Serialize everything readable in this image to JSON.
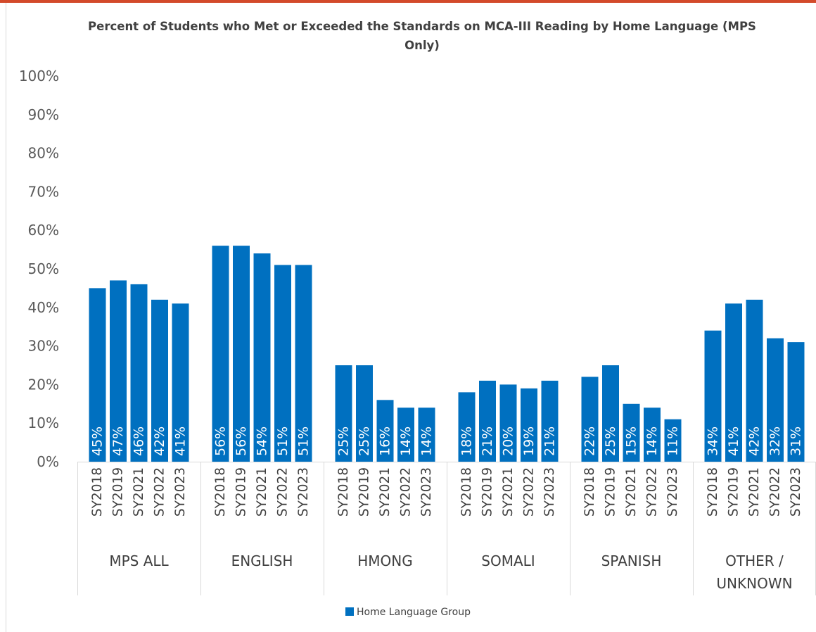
{
  "chart_data": {
    "type": "bar",
    "title": "Percent of Students who Met or Exceeded the Standards on MCA-III Reading by Home Language (MPS Only)",
    "xlabel": "",
    "ylabel": "",
    "ylim": [
      0,
      100
    ],
    "y_ticks": [
      "0%",
      "10%",
      "20%",
      "30%",
      "40%",
      "50%",
      "60%",
      "70%",
      "80%",
      "90%",
      "100%"
    ],
    "grid": false,
    "legend": {
      "position": "bottom",
      "label": "Home Language Group"
    },
    "bar_color": "#0070c0",
    "groups": [
      {
        "name": "MPS ALL",
        "years": [
          "SY2018",
          "SY2019",
          "SY2021",
          "SY2022",
          "SY2023"
        ],
        "values": [
          45,
          47,
          46,
          42,
          41
        ],
        "labels": [
          "45%",
          "47%",
          "46%",
          "42%",
          "41%"
        ]
      },
      {
        "name": "ENGLISH",
        "years": [
          "SY2018",
          "SY2019",
          "SY2021",
          "SY2022",
          "SY2023"
        ],
        "values": [
          56,
          56,
          54,
          51,
          51
        ],
        "labels": [
          "56%",
          "56%",
          "54%",
          "51%",
          "51%"
        ]
      },
      {
        "name": "HMONG",
        "years": [
          "SY2018",
          "SY2019",
          "SY2021",
          "SY2022",
          "SY2023"
        ],
        "values": [
          25,
          25,
          16,
          14,
          14
        ],
        "labels": [
          "25%",
          "25%",
          "16%",
          "14%",
          "14%"
        ]
      },
      {
        "name": "SOMALI",
        "years": [
          "SY2018",
          "SY2019",
          "SY2021",
          "SY2022",
          "SY2023"
        ],
        "values": [
          18,
          21,
          20,
          19,
          21
        ],
        "labels": [
          "18%",
          "21%",
          "20%",
          "19%",
          "21%"
        ]
      },
      {
        "name": "SPANISH",
        "years": [
          "SY2018",
          "SY2019",
          "SY2021",
          "SY2022",
          "SY2023"
        ],
        "values": [
          22,
          25,
          15,
          14,
          11
        ],
        "labels": [
          "22%",
          "25%",
          "15%",
          "14%",
          "11%"
        ]
      },
      {
        "name": "OTHER / UNKNOWN",
        "years": [
          "SY2018",
          "SY2019",
          "SY2021",
          "SY2022",
          "SY2023"
        ],
        "values": [
          34,
          41,
          42,
          32,
          31
        ],
        "labels": [
          "34%",
          "41%",
          "42%",
          "32%",
          "31%"
        ]
      }
    ]
  }
}
